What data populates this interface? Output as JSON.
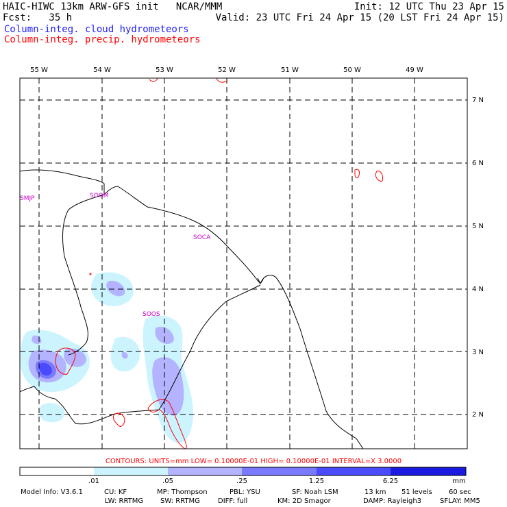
{
  "header": {
    "model_line": "HAIC-HIWC 13km ARW-GFS init   NCAR/MMM",
    "fcst_line": "Fcst:   35 h",
    "init_line": "Init: 12 UTC Thu 23 Apr 15",
    "valid_line": "Valid: 23 UTC Fri 24 Apr 15 (20 LST Fri 24 Apr 15)",
    "field1": "Column-integ. cloud hydrometeors",
    "field2": "Column-integ. precip. hydrometeors"
  },
  "map": {
    "lon_labels": [
      "55 W",
      "54 W",
      "53 W",
      "52 W",
      "51 W",
      "50 W",
      "49 W"
    ],
    "lat_labels": [
      "7 N",
      "6 N",
      "5 N",
      "4 N",
      "3 N",
      "2 N"
    ],
    "stations": [
      "SMJP",
      "SOGM",
      "SOCA",
      "SOOS"
    ],
    "colors": {
      "coast": "#000000",
      "grid": "#000000",
      "contour": "#ff0000",
      "station": "#cc00cc"
    }
  },
  "contour_info": "CONTOURS:  UNITS=mm  LOW= 0.10000E-01  HIGH= 0.10000E-01  INTERVAL=X  3.0000",
  "colorbar": {
    "colors": [
      "#ffffff",
      "#ccf4ff",
      "#b3b3ff",
      "#7a7aff",
      "#4a4aff",
      "#1a1ae0"
    ],
    "tick_labels": [
      ".01",
      ".05",
      ".25",
      "1.25",
      "6.25"
    ],
    "unit": "mm"
  },
  "footer": {
    "line1": [
      "Model Info: V3.6.1",
      "CU: KF",
      "MP: Thompson",
      "PBL: YSU",
      "SF: Noah LSM",
      "13 km",
      "51 levels",
      "60 sec"
    ],
    "line2": [
      "LW: RRTMG",
      "SW: RRTMG",
      "DIFF: full",
      "KM: 2D Smagor",
      "DAMP: Rayleigh3",
      "SFLAY: MM5"
    ]
  }
}
